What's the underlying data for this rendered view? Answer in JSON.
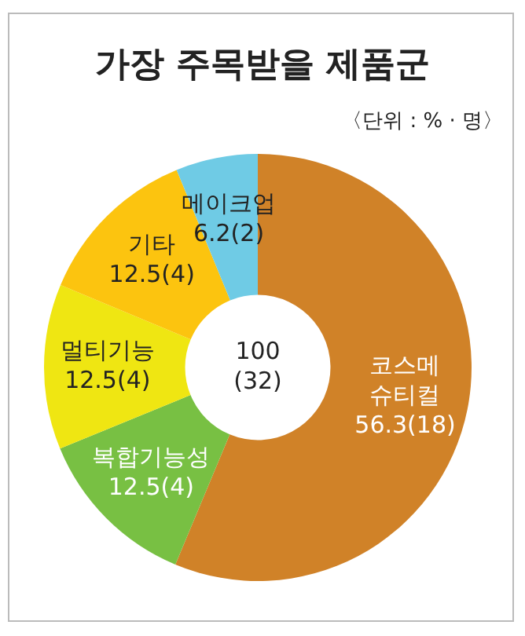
{
  "chart_data": {
    "type": "donut",
    "title": "가장 주목받을 제품군",
    "subtitle": "〈단위 : % · 명〉",
    "categories": [
      "코스메\n슈티컬",
      "복합기능성",
      "멀티기능",
      "기타",
      "메이크업"
    ],
    "values": [
      56.3,
      12.5,
      12.5,
      12.5,
      6.2
    ],
    "value_labels": [
      "56.3(18)",
      "12.5(4)",
      "12.5(4)",
      "12.5(4)",
      "6.2(2)"
    ],
    "colors": [
      "#d08228",
      "#78c043",
      "#efe612",
      "#fcc40f",
      "#6fcbe5"
    ],
    "annotations": [
      "100\n(32)"
    ],
    "legend": false
  }
}
